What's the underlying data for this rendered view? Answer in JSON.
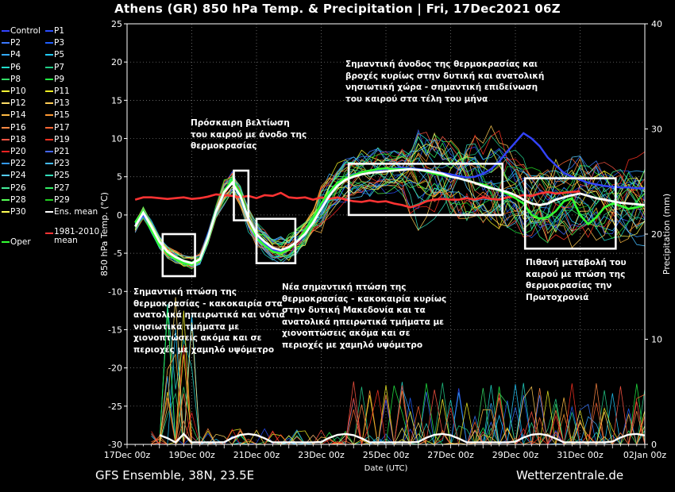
{
  "title": "Athens  (GR)  850 hPa Temp. & Precipitation | Fri, 17Dec2021 06Z",
  "footer_left": "GFS Ensemble, 38N, 23.5E",
  "footer_right": "Wetterzentrale.de",
  "colors": {
    "control": "#3344ff",
    "mean": "#ffffff",
    "oper": "#33ff33",
    "climate": "#ff3333",
    "box": "#ffffff"
  },
  "legend": [
    {
      "label": "Control",
      "color": "#3344ff"
    },
    {
      "label": "P1",
      "color": "#2a4dff"
    },
    {
      "label": "P2",
      "color": "#3a78ff"
    },
    {
      "label": "P3",
      "color": "#1f5fff"
    },
    {
      "label": "P4",
      "color": "#33aaff"
    },
    {
      "label": "P5",
      "color": "#22ccff"
    },
    {
      "label": "P6",
      "color": "#22ddcc"
    },
    {
      "label": "P7",
      "color": "#22cc88"
    },
    {
      "label": "P8",
      "color": "#33dd66"
    },
    {
      "label": "P9",
      "color": "#22ee44"
    },
    {
      "label": "P10",
      "color": "#ffff33"
    },
    {
      "label": "P11",
      "color": "#eeee22"
    },
    {
      "label": "P12",
      "color": "#ffdd66"
    },
    {
      "label": "P13",
      "color": "#ffcc55"
    },
    {
      "label": "P14",
      "color": "#ffbb44"
    },
    {
      "label": "P15",
      "color": "#ff9933"
    },
    {
      "label": "P16",
      "color": "#ff8844"
    },
    {
      "label": "P17",
      "color": "#ff6633"
    },
    {
      "label": "P18",
      "color": "#ff5544"
    },
    {
      "label": "P19",
      "color": "#ff3322"
    },
    {
      "label": "P20",
      "color": "#ee2222"
    },
    {
      "label": "P21",
      "color": "#4466ff"
    },
    {
      "label": "P22",
      "color": "#3399ff"
    },
    {
      "label": "P23",
      "color": "#44bbff"
    },
    {
      "label": "P24",
      "color": "#55ccff"
    },
    {
      "label": "P25",
      "color": "#33ddbb"
    },
    {
      "label": "P26",
      "color": "#44ee99"
    },
    {
      "label": "P27",
      "color": "#33ee66"
    },
    {
      "label": "P28",
      "color": "#55ff55"
    },
    {
      "label": "P29",
      "color": "#22cc22"
    },
    {
      "label": "P30",
      "color": "#ffff55"
    },
    {
      "label": "Ens. mean",
      "color": "#ffffff"
    },
    {
      "label": "Oper",
      "color": "#33ff33"
    },
    {
      "label": "1981-2010 mean",
      "color": "#ff3333"
    }
  ],
  "annotations": [
    {
      "id": "a1",
      "lines": [
        "Πρόσκαιρη βελτίωση",
        "του καιρού με άνοδο της",
        "θερμοκρασίας"
      ]
    },
    {
      "id": "a2",
      "lines": [
        "Σημαντική άνοδος της θερμοκρασίας και",
        "βροχές κυρίως στην δυτική και ανατολική",
        "νησιωτική χώρα - σημαντική επιδείνωση",
        "του καιρού στα τέλη του μήνα"
      ]
    },
    {
      "id": "a3",
      "lines": [
        "Σημαντική πτώση της",
        "θερμοκρασίας - κακοκαιρία στα",
        "ανατολικά ηπειρωτικά και νότια",
        "νησιωτικά τμήματα με",
        "χιονοπτώσεις ακόμα και σε",
        "περιοχές με χαμηλό υψόμετρο"
      ]
    },
    {
      "id": "a4",
      "lines": [
        "Νέα σημαντική πτώση της",
        "θερμοκρασίας - κακοκαιρία κυρίως",
        "στην δυτική Μακεδονία και τα",
        "ανατολικά ηπειρωτικά τμήματα με",
        "χιονοπτώσεις ακόμα και σε",
        "περιοχές με χαμηλό υψόμετρο"
      ]
    },
    {
      "id": "a5",
      "lines": [
        "Πιθανή μεταβολή του",
        "καιρού με πτώση της",
        "θερμοκρασίας την",
        "Πρωτοχρονιά"
      ]
    }
  ],
  "chart_data": {
    "type": "line",
    "ylabel": "850 hPa Temp. (°C)",
    "y2label": "Precipitation (mm)",
    "xlabel": "Date (UTC)",
    "ylim": [
      -30,
      25
    ],
    "y2lim": [
      0,
      40
    ],
    "yticks": [
      -30,
      -25,
      -20,
      -15,
      -10,
      -5,
      0,
      5,
      10,
      15,
      20,
      25
    ],
    "y2ticks": [
      0,
      10,
      20,
      30,
      40
    ],
    "x_tick_labels": [
      "17Dec 00z",
      "19Dec 00z",
      "21Dec 00z",
      "23Dec 00z",
      "25Dec 00z",
      "27Dec 00z",
      "29Dec 00z",
      "31Dec 00z",
      "02Jan 00z"
    ],
    "x_range_days": [
      0,
      16
    ],
    "grid": true,
    "boxes": [
      {
        "day_from": 1.1,
        "day_to": 2.1,
        "temp_from": -8,
        "temp_to": -2.5
      },
      {
        "day_from": 3.3,
        "day_to": 3.75,
        "temp_from": -0.7,
        "temp_to": 5.8
      },
      {
        "day_from": 4.0,
        "day_to": 5.2,
        "temp_from": -6.3,
        "temp_to": -0.5
      },
      {
        "day_from": 6.85,
        "day_to": 11.6,
        "temp_from": 0,
        "temp_to": 6.7
      },
      {
        "day_from": 12.3,
        "day_to": 15.1,
        "temp_from": -4.4,
        "temp_to": 4.8
      }
    ],
    "series": [
      {
        "name": "Ens. mean",
        "x": [
          0.25,
          0.5,
          0.75,
          1,
          1.25,
          1.5,
          1.75,
          2,
          2.25,
          2.5,
          2.75,
          3,
          3.25,
          3.5,
          3.75,
          4,
          4.25,
          4.5,
          4.75,
          5,
          5.25,
          5.5,
          5.75,
          6,
          6.25,
          6.5,
          6.75,
          7,
          7.25,
          7.5,
          7.75,
          8,
          8.25,
          8.5,
          8.75,
          9,
          9.25,
          9.5,
          9.75,
          10,
          10.25,
          10.5,
          10.75,
          11,
          11.25,
          11.5,
          11.75,
          12,
          12.25,
          12.5,
          12.75,
          13,
          13.25,
          13.5,
          13.75,
          14,
          14.25,
          14.5,
          14.75,
          15,
          15.25,
          15.5,
          15.75,
          16
        ],
        "y": [
          -1.5,
          0.3,
          -1.5,
          -3.5,
          -4.8,
          -5.5,
          -6,
          -6.3,
          -5.8,
          -3,
          0.5,
          3,
          4.2,
          2.5,
          -0.5,
          -2.5,
          -3.5,
          -4.3,
          -4.6,
          -4.2,
          -3.5,
          -2.5,
          -1,
          0.8,
          2.5,
          3.8,
          4.6,
          5,
          5.3,
          5.5,
          5.6,
          5.7,
          5.8,
          5.9,
          6,
          5.9,
          5.8,
          5.6,
          5.4,
          5,
          4.8,
          4.5,
          4.2,
          3.8,
          3.5,
          3.3,
          3,
          2.6,
          2,
          1.5,
          1.3,
          1.5,
          2,
          2.3,
          2.6,
          2.8,
          2.5,
          2.2,
          2,
          1.8,
          1.6,
          1.5,
          1.4,
          1.3
        ]
      },
      {
        "name": "Oper",
        "x": [
          0.25,
          0.5,
          0.75,
          1,
          1.25,
          1.5,
          1.75,
          2,
          2.25,
          2.5,
          2.75,
          3,
          3.25,
          3.5,
          3.75,
          4,
          4.25,
          4.5,
          4.75,
          5,
          5.25,
          5.5,
          5.75,
          6,
          6.25,
          6.5,
          6.75,
          7,
          7.25,
          7.5,
          7.75,
          8,
          8.25,
          8.5,
          8.75,
          9,
          9.25,
          9.5,
          9.75,
          10,
          10.25,
          10.5,
          10.75,
          11,
          11.25,
          11.5,
          11.75,
          12,
          12.25,
          12.5,
          12.75,
          13,
          13.25,
          13.5,
          13.75,
          14,
          14.25,
          14.5,
          14.75,
          15,
          15.25,
          15.5,
          15.75,
          16
        ],
        "y": [
          -1,
          0.5,
          -2,
          -4,
          -5,
          -5.8,
          -6.3,
          -6.5,
          -6,
          -3.2,
          0.5,
          3.2,
          4.6,
          2.8,
          -0.5,
          -3,
          -4,
          -4.8,
          -5,
          -4.5,
          -3.5,
          -2,
          -0.5,
          1.5,
          3,
          4.2,
          4.8,
          5.2,
          5.6,
          5.8,
          6,
          6.1,
          6,
          6,
          6,
          5.9,
          5.7,
          5.4,
          5.2,
          5,
          4.8,
          4.5,
          4.2,
          4,
          3.6,
          3.2,
          2.8,
          2.2,
          1.5,
          0,
          -0.5,
          -0.3,
          0.5,
          1.8,
          2.2,
          0,
          -1.2,
          -0.3,
          1,
          1.5,
          1.2,
          0.8,
          1,
          1.3
        ]
      },
      {
        "name": "Control",
        "x": [
          0.25,
          0.5,
          0.75,
          1,
          1.25,
          1.5,
          1.75,
          2,
          2.25,
          2.5,
          2.75,
          3,
          3.25,
          3.5,
          3.75,
          4,
          4.25,
          4.5,
          4.75,
          5,
          5.25,
          5.5,
          5.75,
          6,
          6.25,
          6.5,
          6.75,
          7,
          7.25,
          7.5,
          7.75,
          8,
          8.25,
          8.5,
          8.75,
          9,
          9.25,
          9.5,
          9.75,
          10,
          10.25,
          10.5,
          10.75,
          11,
          11.25,
          11.5,
          11.75,
          12,
          12.25,
          12.5,
          12.75,
          13,
          13.25,
          13.5,
          13.75,
          14,
          14.25,
          14.5,
          14.75,
          15,
          15.25,
          15.5,
          15.75,
          16
        ],
        "y": [
          -1.5,
          0,
          -1.8,
          -3.8,
          -5,
          -5.6,
          -6.1,
          -6.4,
          -5.9,
          -3,
          0.6,
          3,
          4.3,
          2.6,
          -0.3,
          -2.7,
          -3.8,
          -4.5,
          -4.8,
          -4.3,
          -3.4,
          -2.2,
          -0.8,
          1,
          2.8,
          4,
          4.8,
          5.3,
          5.6,
          5.8,
          5.9,
          6,
          6.1,
          6.2,
          6.1,
          6,
          5.9,
          5.7,
          5.5,
          5.3,
          5.1,
          4.9,
          5,
          5.4,
          6,
          7,
          8.3,
          9.5,
          10.7,
          10,
          9,
          7.5,
          6.5,
          5.5,
          5,
          4.6,
          4.2,
          4,
          3.8,
          3.7,
          3.6,
          3.6,
          3.5,
          3.5
        ]
      },
      {
        "name": "1981-2010 mean",
        "x": [
          0.25,
          0.5,
          0.75,
          1,
          1.25,
          1.5,
          1.75,
          2,
          2.25,
          2.5,
          2.75,
          3,
          3.25,
          3.5,
          3.75,
          4,
          4.25,
          4.5,
          4.75,
          5,
          5.25,
          5.5,
          5.75,
          6,
          6.25,
          6.5,
          6.75,
          7,
          7.25,
          7.5,
          7.75,
          8,
          8.25,
          8.5,
          8.75,
          9,
          9.25,
          9.5,
          9.75,
          10,
          10.25,
          10.5,
          10.75,
          11,
          11.25,
          11.5,
          11.75,
          12,
          12.25,
          12.5,
          12.75,
          13,
          13.25,
          13.5,
          13.75,
          14
        ],
        "y": [
          2,
          2.3,
          2.3,
          2.2,
          2.1,
          2.2,
          2.3,
          2.1,
          2.2,
          2.4,
          2.7,
          2.6,
          2.5,
          2.3,
          2.5,
          2.2,
          2.6,
          2.5,
          2.9,
          2.3,
          2.2,
          2.3,
          2,
          2.3,
          2.1,
          2.3,
          2,
          1.8,
          1.7,
          1.9,
          1.7,
          1.8,
          1.5,
          1.3,
          1,
          1.3,
          1.8,
          2,
          2.1,
          2,
          2,
          2.2,
          2,
          2.3,
          2.1,
          2,
          2.3,
          2.4,
          2.6,
          2.5,
          2.8,
          3,
          2.8,
          2.9,
          3,
          3.1
        ]
      }
    ]
  }
}
